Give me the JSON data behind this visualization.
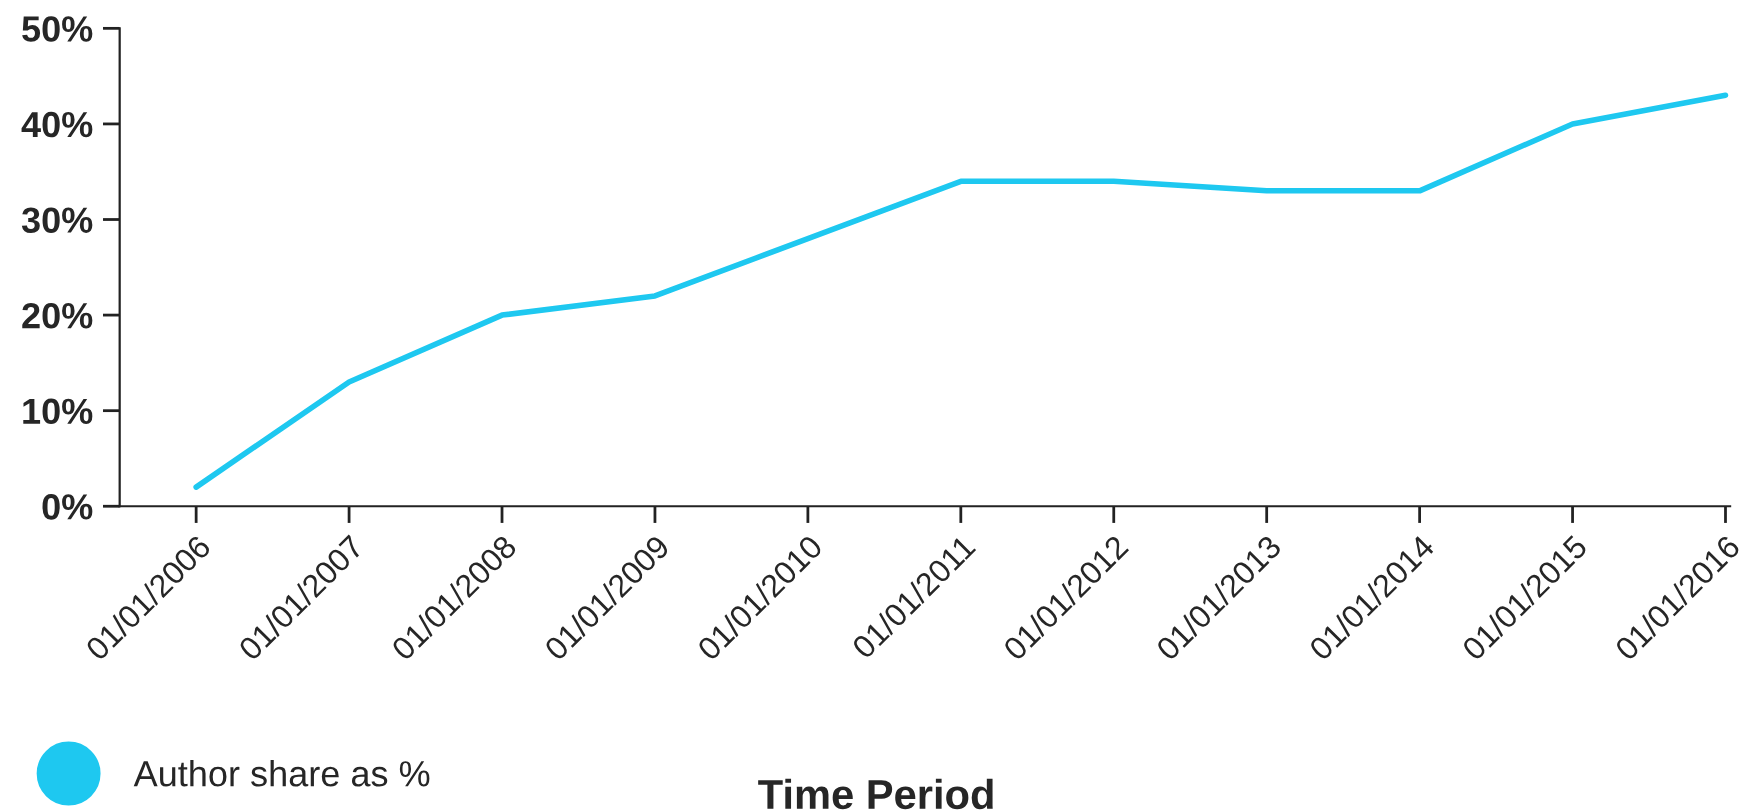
{
  "chart_data": {
    "type": "line",
    "categories": [
      "01/01/2006",
      "01/01/2007",
      "01/01/2008",
      "01/01/2009",
      "01/01/2010",
      "01/01/2011",
      "01/01/2012",
      "01/01/2013",
      "01/01/2014",
      "01/01/2015",
      "01/01/2016"
    ],
    "series": [
      {
        "name": "Author share as %",
        "color": "#1ec8f0",
        "values": [
          2,
          13,
          20,
          22,
          28,
          34,
          34,
          33,
          33,
          40,
          43
        ]
      }
    ],
    "xlabel": "Time Period",
    "ylim": [
      0,
      50
    ],
    "yticks": [
      {
        "value": 0,
        "label": "0%"
      },
      {
        "value": 10,
        "label": "10%"
      },
      {
        "value": 20,
        "label": "20%"
      },
      {
        "value": 30,
        "label": "30%"
      },
      {
        "value": 40,
        "label": "40%"
      },
      {
        "value": 50,
        "label": "50%"
      }
    ],
    "grid": false,
    "legend": "bottom left",
    "marker": "none",
    "line_style": "solid"
  }
}
